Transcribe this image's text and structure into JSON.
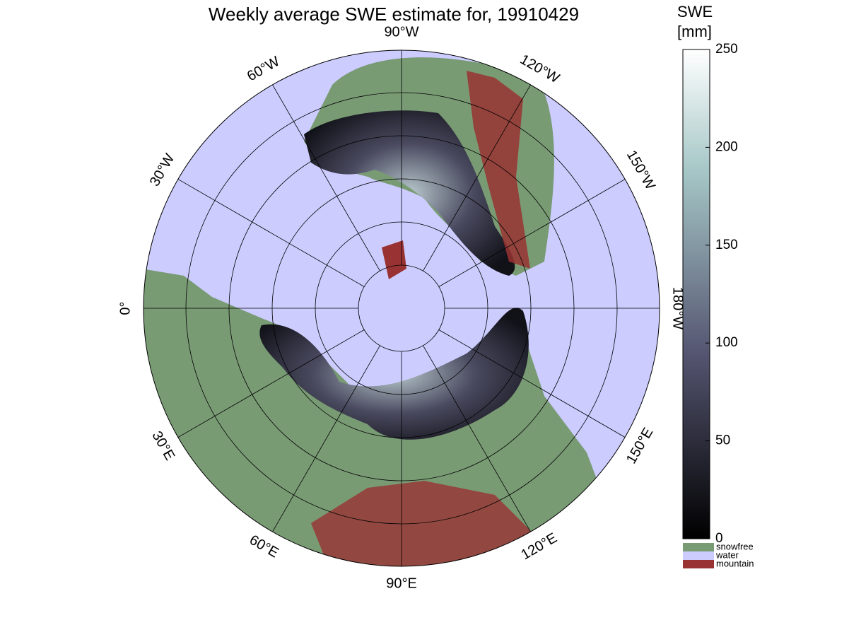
{
  "title": "Weekly average SWE estimate for, 19910429",
  "map": {
    "longitude_labels": [
      "90°W",
      "120°W",
      "150°W",
      "180°W",
      "150°E",
      "120°E",
      "90°E",
      "60°E",
      "30°E",
      "0°",
      "30°W",
      "60°W"
    ]
  },
  "colorbar": {
    "label": [
      "SWE",
      "[mm]"
    ],
    "lim": [
      0,
      250
    ],
    "ticks": [
      0,
      50,
      100,
      150,
      200,
      250
    ]
  },
  "legend": [
    {
      "name": "snowfree",
      "color": "#799b74"
    },
    {
      "name": "water",
      "color": "#ccccff"
    },
    {
      "name": "mountain",
      "color": "#993333"
    }
  ]
}
